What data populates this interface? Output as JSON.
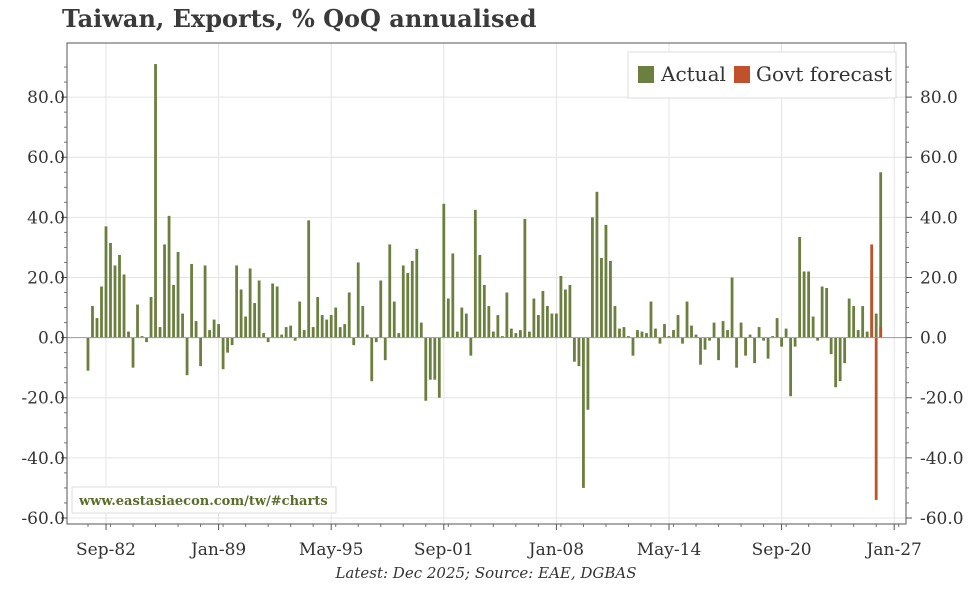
{
  "chart_data": {
    "type": "bar",
    "title": "Taiwan, Exports, % QoQ annualised",
    "footer": "Latest: Dec 2025; Source: EAE, DGBAS",
    "watermark": "www.eastasiaecon.com/tw/#charts",
    "ylim": [
      -62,
      98
    ],
    "yticks": [
      -60,
      -40,
      -20,
      0,
      20,
      40,
      60,
      80
    ],
    "ytick_labels": [
      "-60.0",
      "-40.0",
      "-20.0",
      "0.0",
      "20.0",
      "40.0",
      "60.0",
      "80.0"
    ],
    "xticks": [
      "Sep-82",
      "Jan-89",
      "May-95",
      "Sep-01",
      "Jan-08",
      "May-14",
      "Sep-20",
      "Jan-27"
    ],
    "grid": true,
    "legend_position": "top-right",
    "series": [
      {
        "name": "Actual",
        "color": "#6b7f3f",
        "start": "Sep-81",
        "frequency": "quarterly",
        "values": [
          -11,
          10.5,
          6.5,
          17,
          37,
          31.5,
          24,
          27.5,
          21,
          2,
          -10,
          11,
          0.5,
          -1.5,
          13.5,
          91,
          3.5,
          31,
          40.5,
          17.5,
          28.5,
          8,
          -12.5,
          24.5,
          5.5,
          -9.5,
          24,
          2.5,
          6,
          4.5,
          -10.5,
          -5,
          -2.5,
          24,
          16,
          7,
          23,
          11.5,
          19,
          1.5,
          -1.5,
          18,
          17,
          1,
          3.5,
          4,
          -1,
          12,
          2.5,
          39,
          3.5,
          13.5,
          7.5,
          6,
          7.5,
          10,
          3.5,
          4.5,
          15,
          -2.5,
          25,
          10.5,
          1,
          -14.5,
          -1.5,
          19,
          -7.5,
          31,
          12,
          1.5,
          24,
          21.5,
          25.5,
          29.5,
          5,
          -21,
          -14,
          -14,
          -20,
          44.5,
          13,
          28,
          2,
          10,
          8,
          -6,
          42.5,
          27.5,
          17.5,
          10.5,
          2,
          7.5,
          0.5,
          15,
          3,
          1.5,
          2.5,
          39.5,
          2,
          13,
          7.5,
          15.5,
          10.5,
          8,
          8,
          20.5,
          16,
          17.5,
          -8,
          -9.5,
          -50,
          -24,
          40,
          48.5,
          26.5,
          37.5,
          25.5,
          10.5,
          3,
          3.5,
          0.5,
          -6,
          2.5,
          2,
          1.5,
          12,
          3,
          -2,
          4.5,
          0.5,
          2.5,
          7.5,
          -2,
          12,
          4,
          1,
          -9,
          -4,
          -1,
          5,
          -7.5,
          5.5,
          2.5,
          20,
          -10,
          5,
          -6,
          1,
          -8.5,
          3.5,
          -1,
          -7,
          0.5,
          6.5,
          -3,
          3,
          -19.5,
          -3,
          33.5,
          22,
          22,
          7,
          -1,
          17,
          16.5,
          -5.5,
          -16.5,
          -14.5,
          -8.5,
          13,
          10.5,
          2.5,
          10.5,
          2,
          22.5,
          8,
          55
        ]
      },
      {
        "name": "Govt forecast",
        "color": "#c0512a",
        "start": "Mar-25",
        "frequency": "quarterly",
        "values": [
          31,
          -54,
          3.5
        ]
      }
    ]
  }
}
